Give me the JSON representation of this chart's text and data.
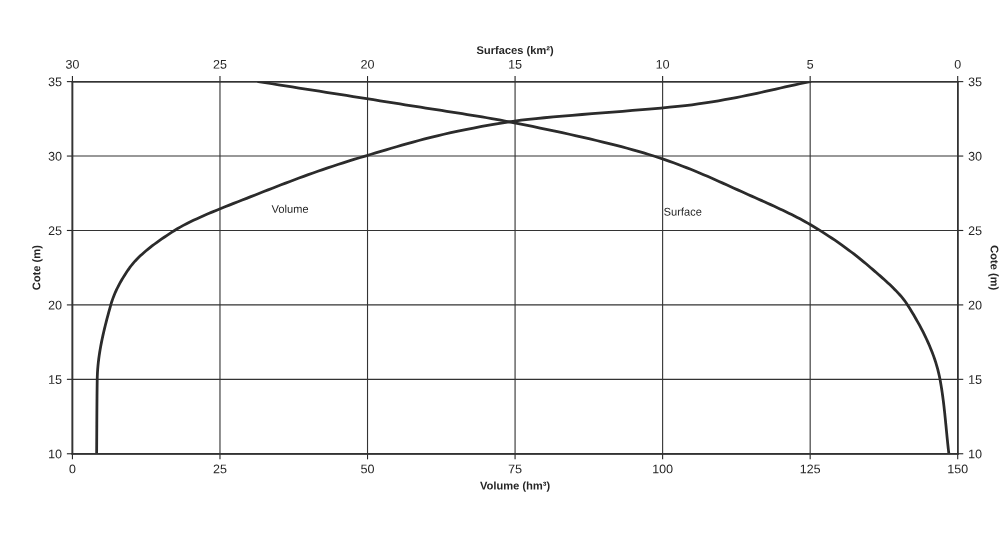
{
  "chart_data": {
    "type": "line",
    "xlabel": "Volume (hm³)",
    "x2label": "Surfaces (km²)",
    "ylabel": "Cote (m)",
    "y2label": "Cote (m)",
    "xlim": [
      0,
      150
    ],
    "xticks": [
      0,
      25,
      50,
      75,
      100,
      125,
      150
    ],
    "x2lim": [
      30,
      0
    ],
    "x2ticks": [
      30,
      25,
      20,
      15,
      10,
      5,
      0
    ],
    "ylim": [
      10,
      35
    ],
    "yticks": [
      10,
      15,
      20,
      25,
      30,
      35
    ],
    "y2lim": [
      10,
      35
    ],
    "y2ticks": [
      10,
      15,
      20,
      25,
      30,
      35
    ],
    "grid": true,
    "marker": "none",
    "line_style": "solid",
    "series": [
      {
        "color": "#2b2b2b",
        "x": [
          4.1,
          4.2,
          6.5,
          9.7,
          17.3,
          31.7,
          49.6,
          74,
          106,
          125
        ],
        "values": [
          10,
          15,
          20,
          22.5,
          25,
          27.5,
          30,
          32.3,
          33.5,
          35
        ]
      },
      {
        "color": "#2b2b2b",
        "axis": "x2",
        "x": [
          0.3,
          0.6,
          1.7,
          2.95,
          5,
          7.2,
          10.3,
          15.2,
          18.9,
          23.7
        ],
        "values": [
          10,
          15,
          20,
          22.5,
          25.4,
          27.5,
          30,
          32.3,
          33.5,
          35
        ]
      }
    ],
    "annotations": [
      "Volume",
      "Surface"
    ]
  }
}
